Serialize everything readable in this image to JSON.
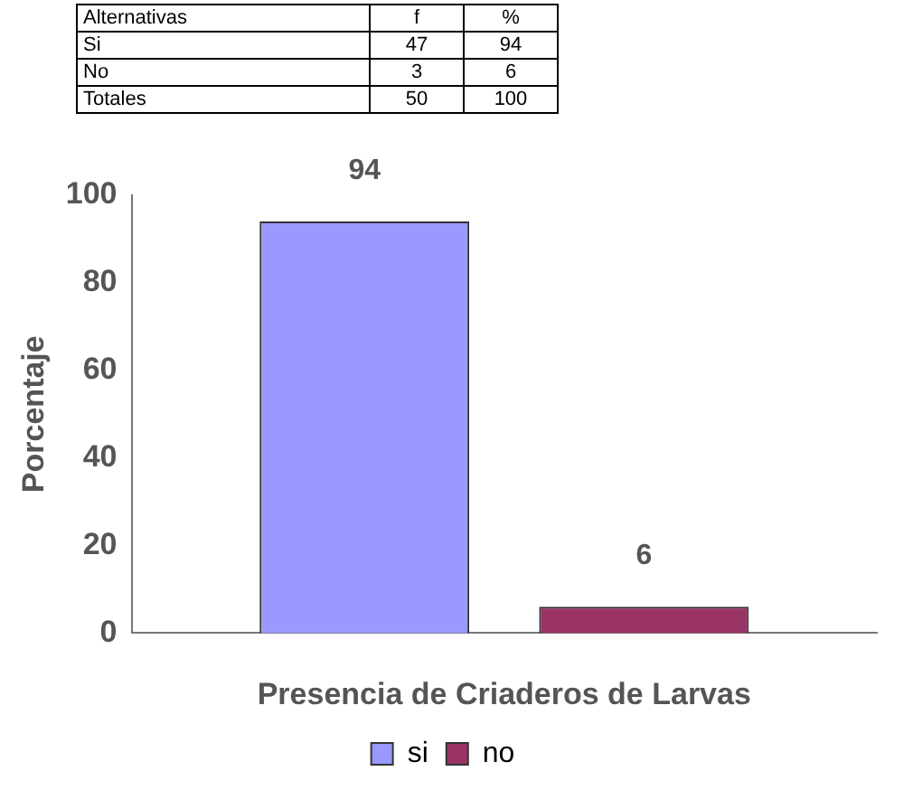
{
  "chart_data": {
    "type": "bar",
    "xlabel": "Presencia de Criaderos de Larvas",
    "ylabel": "Porcentaje",
    "categories": [
      null
    ],
    "series": [
      {
        "name": "si",
        "color": "#9999ff",
        "values": [
          94
        ]
      },
      {
        "name": "no",
        "color": "#993366",
        "values": [
          6
        ]
      }
    ],
    "ylim": [
      0,
      100
    ],
    "yticks": [
      0,
      20,
      40,
      60,
      80,
      100
    ],
    "grid": false,
    "legend": "bottom",
    "data_labels": true,
    "annotations": [
      "Alternativas",
      "f",
      "%",
      "Si",
      "47",
      "94",
      "No",
      "3",
      "6",
      "Totales",
      "50",
      "100"
    ]
  }
}
